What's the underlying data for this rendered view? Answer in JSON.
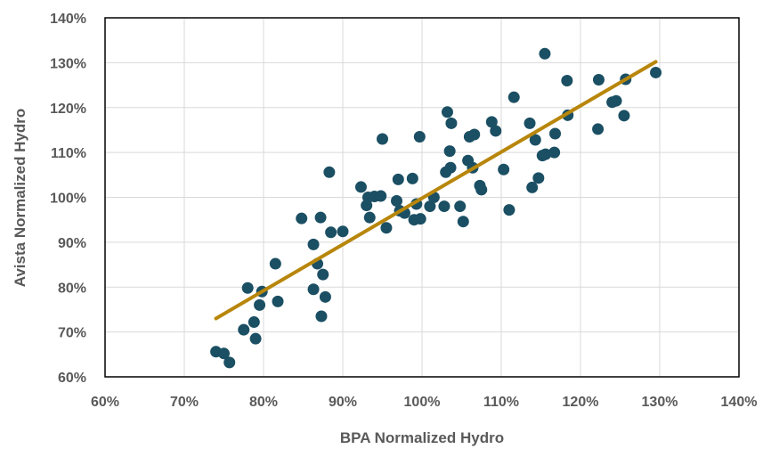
{
  "chart_data": {
    "type": "scatter",
    "xlabel": "BPA Normalized Hydro",
    "ylabel": "Avista Normalized Hydro",
    "xlim": [
      0.6,
      1.4
    ],
    "ylim": [
      0.6,
      1.4
    ],
    "x_ticks": [
      0.6,
      0.7,
      0.8,
      0.9,
      1.0,
      1.1,
      1.2,
      1.3,
      1.4
    ],
    "y_ticks": [
      0.6,
      0.7,
      0.8,
      0.9,
      1.0,
      1.1,
      1.2,
      1.3,
      1.4
    ],
    "x_tick_labels": [
      "60%",
      "70%",
      "80%",
      "90%",
      "100%",
      "110%",
      "120%",
      "130%",
      "140%"
    ],
    "y_tick_labels": [
      "60%",
      "70%",
      "80%",
      "90%",
      "100%",
      "110%",
      "120%",
      "130%",
      "140%"
    ],
    "grid": true,
    "legend": "none",
    "colors": {
      "points": "#1b4f63",
      "trendline": "#b8860b",
      "grid": "#d9d9d9",
      "axis_text": "#595959"
    },
    "trendline": {
      "x": [
        0.74,
        1.295
      ],
      "y": [
        0.73,
        1.302
      ]
    },
    "series": [
      {
        "points": [
          {
            "x": 0.74,
            "y": 0.656
          },
          {
            "x": 0.75,
            "y": 0.652
          },
          {
            "x": 0.757,
            "y": 0.632
          },
          {
            "x": 0.775,
            "y": 0.705
          },
          {
            "x": 0.78,
            "y": 0.798
          },
          {
            "x": 0.788,
            "y": 0.722
          },
          {
            "x": 0.79,
            "y": 0.685
          },
          {
            "x": 0.795,
            "y": 0.76
          },
          {
            "x": 0.798,
            "y": 0.79
          },
          {
            "x": 0.815,
            "y": 0.852
          },
          {
            "x": 0.818,
            "y": 0.768
          },
          {
            "x": 0.848,
            "y": 0.953
          },
          {
            "x": 0.863,
            "y": 0.895
          },
          {
            "x": 0.863,
            "y": 0.795
          },
          {
            "x": 0.868,
            "y": 0.852
          },
          {
            "x": 0.872,
            "y": 0.955
          },
          {
            "x": 0.873,
            "y": 0.735
          },
          {
            "x": 0.875,
            "y": 0.828
          },
          {
            "x": 0.878,
            "y": 0.778
          },
          {
            "x": 0.883,
            "y": 1.056
          },
          {
            "x": 0.885,
            "y": 0.922
          },
          {
            "x": 0.9,
            "y": 0.924
          },
          {
            "x": 0.923,
            "y": 1.023
          },
          {
            "x": 0.93,
            "y": 0.982
          },
          {
            "x": 0.932,
            "y": 1.0
          },
          {
            "x": 0.934,
            "y": 0.955
          },
          {
            "x": 0.94,
            "y": 1.002
          },
          {
            "x": 0.948,
            "y": 1.003
          },
          {
            "x": 0.95,
            "y": 1.13
          },
          {
            "x": 0.955,
            "y": 0.932
          },
          {
            "x": 0.968,
            "y": 0.992
          },
          {
            "x": 0.97,
            "y": 1.04
          },
          {
            "x": 0.972,
            "y": 0.97
          },
          {
            "x": 0.978,
            "y": 0.965
          },
          {
            "x": 0.988,
            "y": 1.042
          },
          {
            "x": 0.99,
            "y": 0.95
          },
          {
            "x": 0.993,
            "y": 0.985
          },
          {
            "x": 0.997,
            "y": 1.135
          },
          {
            "x": 0.998,
            "y": 0.952
          },
          {
            "x": 1.01,
            "y": 0.98
          },
          {
            "x": 1.015,
            "y": 1.0
          },
          {
            "x": 1.028,
            "y": 0.98
          },
          {
            "x": 1.03,
            "y": 1.056
          },
          {
            "x": 1.032,
            "y": 1.19
          },
          {
            "x": 1.035,
            "y": 1.103
          },
          {
            "x": 1.036,
            "y": 1.066
          },
          {
            "x": 1.037,
            "y": 1.165
          },
          {
            "x": 1.048,
            "y": 0.98
          },
          {
            "x": 1.052,
            "y": 0.946
          },
          {
            "x": 1.058,
            "y": 1.082
          },
          {
            "x": 1.06,
            "y": 1.135
          },
          {
            "x": 1.064,
            "y": 1.066
          },
          {
            "x": 1.066,
            "y": 1.14
          },
          {
            "x": 1.073,
            "y": 1.026
          },
          {
            "x": 1.075,
            "y": 1.017
          },
          {
            "x": 1.088,
            "y": 1.168
          },
          {
            "x": 1.093,
            "y": 1.148
          },
          {
            "x": 1.103,
            "y": 1.062
          },
          {
            "x": 1.11,
            "y": 0.972
          },
          {
            "x": 1.116,
            "y": 1.223
          },
          {
            "x": 1.136,
            "y": 1.165
          },
          {
            "x": 1.139,
            "y": 1.022
          },
          {
            "x": 1.143,
            "y": 1.128
          },
          {
            "x": 1.147,
            "y": 1.043
          },
          {
            "x": 1.152,
            "y": 1.093
          },
          {
            "x": 1.155,
            "y": 1.32
          },
          {
            "x": 1.156,
            "y": 1.096
          },
          {
            "x": 1.167,
            "y": 1.1
          },
          {
            "x": 1.168,
            "y": 1.142
          },
          {
            "x": 1.183,
            "y": 1.26
          },
          {
            "x": 1.184,
            "y": 1.183
          },
          {
            "x": 1.222,
            "y": 1.152
          },
          {
            "x": 1.223,
            "y": 1.262
          },
          {
            "x": 1.24,
            "y": 1.212
          },
          {
            "x": 1.245,
            "y": 1.215
          },
          {
            "x": 1.255,
            "y": 1.182
          },
          {
            "x": 1.257,
            "y": 1.263
          },
          {
            "x": 1.295,
            "y": 1.278
          }
        ]
      }
    ]
  }
}
